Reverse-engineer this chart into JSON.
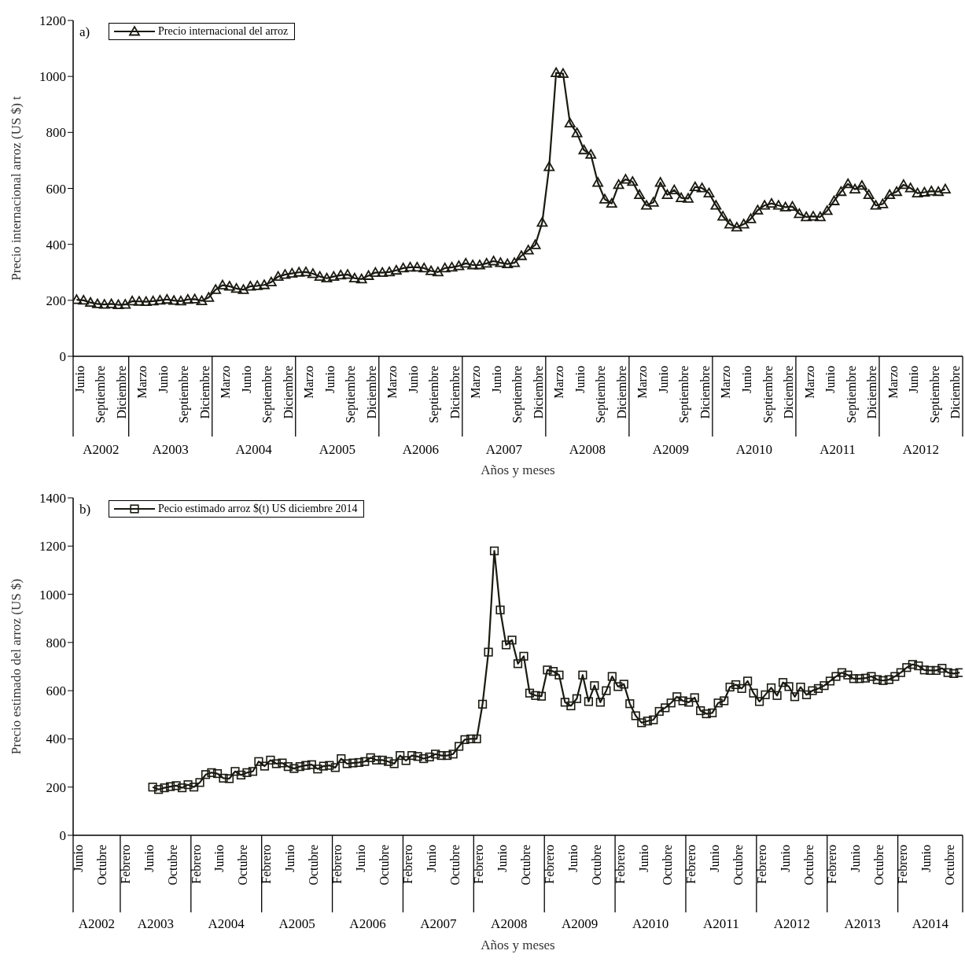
{
  "chart_data": [
    {
      "type": "line",
      "xlabel": "Años y meses",
      "ylabel": "Precio internacional arroz (US $) t",
      "legend": "top left",
      "marker": "triangle",
      "line_style": "solid",
      "xlim": [
        "2002-04-16",
        "2012-12-16"
      ],
      "ylim": [
        0,
        1200
      ],
      "yticks": [
        0,
        200,
        400,
        600,
        800,
        1000,
        1200
      ],
      "xticks": [
        {
          "value": "2002-06",
          "label": "Junio"
        },
        {
          "value": "2002-09",
          "label": "Septiembre"
        },
        {
          "value": "2002-12",
          "label": "Diciembre"
        },
        {
          "value": "2003-03",
          "label": "Marzo"
        },
        {
          "value": "2003-06",
          "label": "Junio"
        },
        {
          "value": "2003-09",
          "label": "Septiembre"
        },
        {
          "value": "2003-12",
          "label": "Diciembre"
        },
        {
          "value": "2004-03",
          "label": "Marzo"
        },
        {
          "value": "2004-06",
          "label": "Junio"
        },
        {
          "value": "2004-09",
          "label": "Septiembre"
        },
        {
          "value": "2004-12",
          "label": "Diciembre"
        },
        {
          "value": "2005-03",
          "label": "Marzo"
        },
        {
          "value": "2005-06",
          "label": "Junio"
        },
        {
          "value": "2005-09",
          "label": "Septiembre"
        },
        {
          "value": "2005-12",
          "label": "Diciembre"
        },
        {
          "value": "2006-03",
          "label": "Marzo"
        },
        {
          "value": "2006-06",
          "label": "Junio"
        },
        {
          "value": "2006-09",
          "label": "Septiembre"
        },
        {
          "value": "2006-12",
          "label": "Diciembre"
        },
        {
          "value": "2007-03",
          "label": "Marzo"
        },
        {
          "value": "2007-06",
          "label": "Junio"
        },
        {
          "value": "2007-09",
          "label": "Septiembre"
        },
        {
          "value": "2007-12",
          "label": "Diciembre"
        },
        {
          "value": "2008-03",
          "label": "Marzo"
        },
        {
          "value": "2008-06",
          "label": "Junio"
        },
        {
          "value": "2008-09",
          "label": "Septiembre"
        },
        {
          "value": "2008-12",
          "label": "Diciembre"
        },
        {
          "value": "2009-03",
          "label": "Marzo"
        },
        {
          "value": "2009-06",
          "label": "Junio"
        },
        {
          "value": "2009-09",
          "label": "Septiembre"
        },
        {
          "value": "2009-12",
          "label": "Diciembre"
        },
        {
          "value": "2010-03",
          "label": "Marzo"
        },
        {
          "value": "2010-06",
          "label": "Junio"
        },
        {
          "value": "2010-09",
          "label": "Septiembre"
        },
        {
          "value": "2010-12",
          "label": "Diciembre"
        },
        {
          "value": "2011-03",
          "label": "Marzo"
        },
        {
          "value": "2011-06",
          "label": "Junio"
        },
        {
          "value": "2011-09",
          "label": "Septiembre"
        },
        {
          "value": "2011-12",
          "label": "Diciembre"
        },
        {
          "value": "2012-03",
          "label": "Marzo"
        },
        {
          "value": "2012-06",
          "label": "Junio"
        },
        {
          "value": "2012-09",
          "label": "Septiembre"
        },
        {
          "value": "2012-12",
          "label": "Diciembre"
        }
      ],
      "annotations": [
        "a)",
        "A2002",
        "A2003",
        "A2004",
        "A2005",
        "A2006",
        "A2007",
        "A2008",
        "A2009",
        "A2010",
        "A2011",
        "A2012"
      ],
      "x": [
        "2002-05",
        "2002-06",
        "2002-07",
        "2002-08",
        "2002-09",
        "2002-10",
        "2002-11",
        "2002-12",
        "2003-01",
        "2003-02",
        "2003-03",
        "2003-04",
        "2003-05",
        "2003-06",
        "2003-07",
        "2003-08",
        "2003-09",
        "2003-10",
        "2003-11",
        "2003-12",
        "2004-01",
        "2004-02",
        "2004-03",
        "2004-04",
        "2004-05",
        "2004-06",
        "2004-07",
        "2004-08",
        "2004-09",
        "2004-10",
        "2004-11",
        "2004-12",
        "2005-01",
        "2005-02",
        "2005-03",
        "2005-04",
        "2005-05",
        "2005-06",
        "2005-07",
        "2005-08",
        "2005-09",
        "2005-10",
        "2005-11",
        "2005-12",
        "2006-01",
        "2006-02",
        "2006-03",
        "2006-04",
        "2006-05",
        "2006-06",
        "2006-07",
        "2006-08",
        "2006-09",
        "2006-10",
        "2006-11",
        "2006-12",
        "2007-01",
        "2007-02",
        "2007-03",
        "2007-04",
        "2007-05",
        "2007-06",
        "2007-07",
        "2007-08",
        "2007-09",
        "2007-10",
        "2007-11",
        "2007-12",
        "2008-01",
        "2008-02",
        "2008-03",
        "2008-04",
        "2008-05",
        "2008-06",
        "2008-07",
        "2008-08",
        "2008-09",
        "2008-10",
        "2008-11",
        "2008-12",
        "2009-01",
        "2009-02",
        "2009-03",
        "2009-04",
        "2009-05",
        "2009-06",
        "2009-07",
        "2009-08",
        "2009-09",
        "2009-10",
        "2009-11",
        "2009-12",
        "2010-01",
        "2010-02",
        "2010-03",
        "2010-04",
        "2010-05",
        "2010-06",
        "2010-07",
        "2010-08",
        "2010-09",
        "2010-10",
        "2010-11",
        "2010-12",
        "2011-01",
        "2011-02",
        "2011-03",
        "2011-04",
        "2011-05",
        "2011-06",
        "2011-07",
        "2011-08",
        "2011-09",
        "2011-10",
        "2011-11",
        "2011-12",
        "2012-01",
        "2012-02",
        "2012-03",
        "2012-04",
        "2012-05",
        "2012-06",
        "2012-07",
        "2012-08",
        "2012-09",
        "2012-10"
      ],
      "series": [
        {
          "name": "Precio internacional del arroz",
          "color": "#1a1a12",
          "values": [
            202,
            200,
            192,
            187,
            185,
            187,
            184,
            185,
            197,
            196,
            195,
            197,
            200,
            203,
            199,
            197,
            203,
            204,
            198,
            210,
            238,
            254,
            250,
            242,
            238,
            250,
            252,
            255,
            265,
            285,
            292,
            296,
            300,
            301,
            295,
            285,
            279,
            285,
            290,
            292,
            279,
            276,
            288,
            299,
            299,
            301,
            307,
            315,
            318,
            318,
            315,
            305,
            301,
            315,
            318,
            323,
            332,
            326,
            326,
            332,
            340,
            334,
            330,
            334,
            359,
            379,
            398,
            478,
            677,
            1013,
            1010,
            833,
            798,
            737,
            721,
            621,
            561,
            546,
            613,
            632,
            624,
            577,
            539,
            550,
            621,
            577,
            594,
            566,
            564,
            605,
            601,
            583,
            539,
            500,
            472,
            461,
            472,
            491,
            522,
            539,
            546,
            539,
            533,
            535,
            509,
            498,
            500,
            498,
            520,
            555,
            588,
            616,
            597,
            610,
            577,
            539,
            544,
            577,
            588,
            613,
            601,
            583,
            586,
            590,
            588,
            597
          ]
        }
      ]
    },
    {
      "type": "line",
      "xlabel": "Años y meses",
      "ylabel": "Precio estimado del arroz (US $)",
      "legend": "top left",
      "marker": "square",
      "line_style": "solid",
      "xlim": [
        "2002-04-16",
        "2014-11-16"
      ],
      "ylim": [
        0,
        1400
      ],
      "yticks": [
        0,
        200,
        400,
        600,
        800,
        1000,
        1200,
        1400
      ],
      "xticks": [
        {
          "value": "2002-06",
          "label": "Junio"
        },
        {
          "value": "2002-10",
          "label": "Octubre"
        },
        {
          "value": "2003-02",
          "label": "Febrero"
        },
        {
          "value": "2003-06",
          "label": "Junio"
        },
        {
          "value": "2003-10",
          "label": "Octubre"
        },
        {
          "value": "2004-02",
          "label": "Febrero"
        },
        {
          "value": "2004-06",
          "label": "Junio"
        },
        {
          "value": "2004-10",
          "label": "Octubre"
        },
        {
          "value": "2005-02",
          "label": "Febrero"
        },
        {
          "value": "2005-06",
          "label": "Junio"
        },
        {
          "value": "2005-10",
          "label": "Octubre"
        },
        {
          "value": "2006-02",
          "label": "Febrero"
        },
        {
          "value": "2006-06",
          "label": "Junio"
        },
        {
          "value": "2006-10",
          "label": "Octubre"
        },
        {
          "value": "2007-02",
          "label": "Febrero"
        },
        {
          "value": "2007-06",
          "label": "Junio"
        },
        {
          "value": "2007-10",
          "label": "Octubre"
        },
        {
          "value": "2008-02",
          "label": "Febrero"
        },
        {
          "value": "2008-06",
          "label": "Junio"
        },
        {
          "value": "2008-10",
          "label": "Octubre"
        },
        {
          "value": "2009-02",
          "label": "Febrero"
        },
        {
          "value": "2009-06",
          "label": "Junio"
        },
        {
          "value": "2009-10",
          "label": "Octubre"
        },
        {
          "value": "2010-02",
          "label": "Febrero"
        },
        {
          "value": "2010-06",
          "label": "Junio"
        },
        {
          "value": "2010-10",
          "label": "Octubre"
        },
        {
          "value": "2011-02",
          "label": "Febrero"
        },
        {
          "value": "2011-06",
          "label": "Junio"
        },
        {
          "value": "2011-10",
          "label": "Octubre"
        },
        {
          "value": "2012-02",
          "label": "Febrero"
        },
        {
          "value": "2012-06",
          "label": "Junio"
        },
        {
          "value": "2012-10",
          "label": "Octubre"
        },
        {
          "value": "2013-02",
          "label": "Febrero"
        },
        {
          "value": "2013-06",
          "label": "Junio"
        },
        {
          "value": "2013-10",
          "label": "Octubre"
        },
        {
          "value": "2014-02",
          "label": "Febrero"
        },
        {
          "value": "2014-06",
          "label": "Junio"
        },
        {
          "value": "2014-10",
          "label": "Octubre"
        }
      ],
      "annotations": [
        "b)",
        "A2002",
        "A2003",
        "A2004",
        "A2005",
        "A2006",
        "A2007",
        "A2008",
        "A2009",
        "A2010",
        "A2011",
        "A2012",
        "A2013",
        "A2014"
      ],
      "series": [
        {
          "name": "Pecio estimado arroz $(t) US diciembre 2014",
          "color": "#1a1a12",
          "x": [
            "2003-06",
            "2003-07",
            "2003-08",
            "2003-09",
            "2003-10",
            "2003-11",
            "2003-12",
            "2004-01",
            "2004-02",
            "2004-03",
            "2004-04",
            "2004-05",
            "2004-06",
            "2004-07",
            "2004-08",
            "2004-09",
            "2004-10",
            "2004-11",
            "2004-12",
            "2005-01",
            "2005-02",
            "2005-03",
            "2005-04",
            "2005-05",
            "2005-06",
            "2005-07",
            "2005-08",
            "2005-09",
            "2005-10",
            "2005-11",
            "2005-12",
            "2006-01",
            "2006-02",
            "2006-03",
            "2006-04",
            "2006-05",
            "2006-06",
            "2006-07",
            "2006-08",
            "2006-09",
            "2006-10",
            "2006-11",
            "2006-12",
            "2007-01",
            "2007-02",
            "2007-03",
            "2007-04",
            "2007-05",
            "2007-06",
            "2007-07",
            "2007-08",
            "2007-09",
            "2007-10",
            "2007-11",
            "2007-12",
            "2008-01",
            "2008-02",
            "2008-03",
            "2008-04",
            "2008-05",
            "2008-06",
            "2008-07",
            "2008-08",
            "2008-09",
            "2008-10",
            "2008-11",
            "2008-12",
            "2009-01",
            "2009-02",
            "2009-03",
            "2009-04",
            "2009-05",
            "2009-06",
            "2009-07",
            "2009-08",
            "2009-09",
            "2009-10",
            "2009-11",
            "2009-12",
            "2010-01",
            "2010-02",
            "2010-03",
            "2010-04",
            "2010-05",
            "2010-06",
            "2010-07",
            "2010-08",
            "2010-09",
            "2010-10",
            "2010-11",
            "2010-12",
            "2011-01",
            "2011-02",
            "2011-03",
            "2011-04",
            "2011-05",
            "2011-06",
            "2011-07",
            "2011-08",
            "2011-09",
            "2011-10",
            "2011-11",
            "2011-12",
            "2012-01",
            "2012-02",
            "2012-03",
            "2012-04",
            "2012-05",
            "2012-06",
            "2012-07",
            "2012-08",
            "2012-09",
            "2012-10",
            "2012-11",
            "2012-12",
            "2013-01",
            "2013-02",
            "2013-03",
            "2013-04",
            "2013-05",
            "2013-06",
            "2013-07",
            "2013-08",
            "2013-09",
            "2013-10",
            "2013-11",
            "2013-12",
            "2014-01",
            "2014-02",
            "2014-03",
            "2014-04",
            "2014-05",
            "2014-06",
            "2014-07",
            "2014-08",
            "2014-09",
            "2014-10",
            "2014-11"
          ],
          "values": [
            200,
            190,
            197,
            202,
            206,
            197,
            210,
            200,
            219,
            252,
            260,
            256,
            237,
            235,
            265,
            250,
            260,
            265,
            306,
            287,
            312,
            297,
            300,
            285,
            277,
            285,
            290,
            293,
            275,
            287,
            290,
            281,
            318,
            297,
            300,
            302,
            306,
            322,
            312,
            312,
            306,
            297,
            331,
            310,
            331,
            327,
            318,
            325,
            337,
            331,
            331,
            337,
            369,
            397,
            400,
            400,
            544,
            760,
            1180,
            935,
            790,
            810,
            712,
            743,
            590,
            580,
            577,
            686,
            680,
            665,
            552,
            537,
            567,
            665,
            555,
            621,
            552,
            600,
            659,
            617,
            627,
            546,
            496,
            467,
            474,
            479,
            514,
            529,
            549,
            575,
            558,
            552,
            571,
            517,
            504,
            508,
            549,
            558,
            615,
            625,
            609,
            640,
            590,
            555,
            583,
            612,
            580,
            634,
            617,
            575,
            615,
            583,
            600,
            609,
            621,
            640,
            659,
            675,
            665,
            650,
            650,
            652,
            659,
            646,
            642,
            646,
            659,
            675,
            696,
            709,
            703,
            686,
            684,
            684,
            693,
            675,
            671,
            675
          ]
        }
      ]
    }
  ]
}
